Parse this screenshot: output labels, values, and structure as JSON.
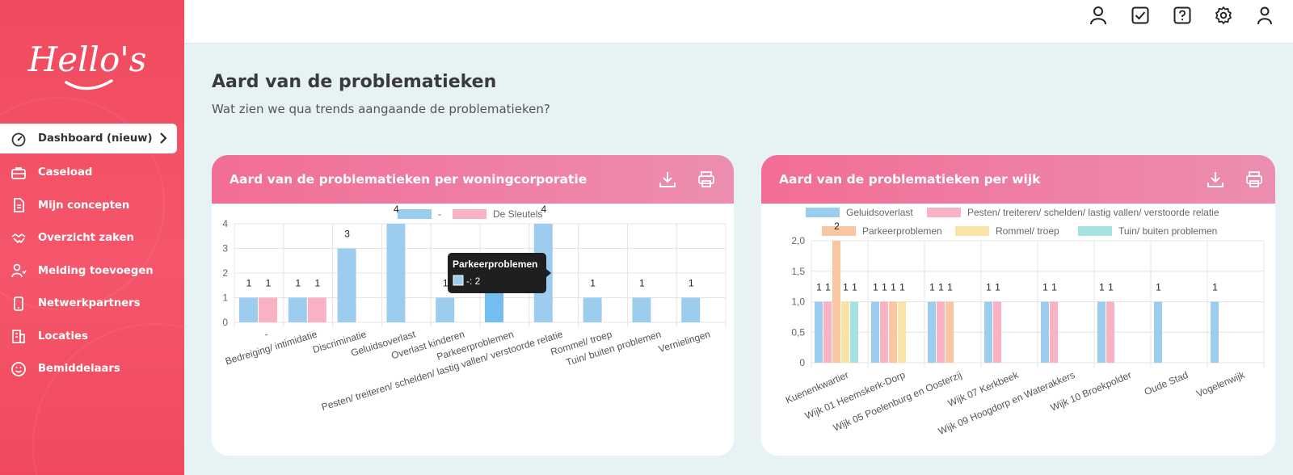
{
  "sidebar": {
    "logo_text": "Hello's",
    "items": [
      {
        "label": "Dashboard (nieuw)",
        "icon": "dashboard-gauge-icon"
      },
      {
        "label": "Caseload",
        "icon": "briefcase-icon"
      },
      {
        "label": "Mijn concepten",
        "icon": "document-icon"
      },
      {
        "label": "Overzicht zaken",
        "icon": "handshake-icon"
      },
      {
        "label": "Melding toevoegen",
        "icon": "user-add-icon"
      },
      {
        "label": "Netwerkpartners",
        "icon": "phone-icon"
      },
      {
        "label": "Locaties",
        "icon": "building-icon"
      },
      {
        "label": "Bemiddelaars",
        "icon": "smiley-icon"
      }
    ]
  },
  "topbar": {
    "icons": [
      "user-icon",
      "checkbox-icon",
      "help-icon",
      "gear-icon",
      "profile-icon"
    ]
  },
  "page": {
    "title": "Aard van de problematieken",
    "subtitle": "Wat zien we qua trends aangaande de problematieken?"
  },
  "card1": {
    "title": "Aard van de problematieken per woningcorporatie"
  },
  "card2": {
    "title": "Aard van de problematieken per wijk"
  },
  "colors": {
    "blue": "#9ccdee",
    "pink": "#f8b2c3",
    "orange": "#f8c7a2",
    "yellow": "#fbe3a8",
    "teal": "#a5e1df",
    "accent": "#f04a5e"
  },
  "chart_data": [
    {
      "type": "bar",
      "categories": [
        "-",
        "Bedreiging/ intimidatie",
        "Discriminatie",
        "Geluidsoverlast",
        "Overlast kinderen",
        "Parkeerproblemen",
        "Pesten/ treiteren/ schelden/ lastig vallen/ verstoorde relatie",
        "Rommel/ troep",
        "Tuin/ buiten problemen",
        "Vernielingen"
      ],
      "series": [
        {
          "name": "-",
          "color": "#9ccdee",
          "values": [
            1,
            1,
            3,
            4,
            1,
            2,
            4,
            1,
            1,
            1
          ]
        },
        {
          "name": "De Sleutels",
          "color": "#f8b2c3",
          "values": [
            1,
            1,
            0,
            0,
            0,
            0,
            0,
            0,
            0,
            0
          ]
        }
      ],
      "yticks": [
        "0",
        "1",
        "2",
        "3",
        "4"
      ],
      "ylim": [
        0,
        4
      ],
      "tooltip": {
        "title": "Parkeerproblemen",
        "text": "-: 2",
        "category_index": 5
      },
      "grid": true,
      "legend": "top"
    },
    {
      "type": "bar",
      "categories": [
        "Kuenenkwartier",
        "Wijk 01 Heemskerk-Dorp",
        "Wijk 05 Poelenburg en Oosterzij",
        "Wijk 07 Kerkbeek",
        "Wijk 09 Hoogdorp en Waterakkers",
        "Wijk 10 Broekpolder",
        "Oude Stad",
        "Vogelenwijk"
      ],
      "series": [
        {
          "name": "Geluidsoverlast",
          "color": "#9ccdee",
          "values": [
            1,
            1,
            1,
            1,
            1,
            1,
            1,
            1
          ]
        },
        {
          "name": "Pesten/ treiteren/ schelden/ lastig vallen/ verstoorde relatie",
          "color": "#f8b2c3",
          "values": [
            1,
            1,
            1,
            1,
            1,
            1,
            0,
            0
          ]
        },
        {
          "name": "Parkeerproblemen",
          "color": "#f8c7a2",
          "values": [
            2,
            1,
            1,
            0,
            0,
            0,
            0,
            0
          ]
        },
        {
          "name": "Rommel/ troep",
          "color": "#fbe3a8",
          "values": [
            1,
            1,
            0,
            0,
            0,
            0,
            0,
            0
          ]
        },
        {
          "name": "Tuin/ buiten problemen",
          "color": "#a5e1df",
          "values": [
            1,
            0,
            0,
            0,
            0,
            0,
            0,
            0
          ]
        }
      ],
      "yticks": [
        "0",
        "0,5",
        "1,0",
        "1,5",
        "2,0"
      ],
      "ylim": [
        0,
        2
      ],
      "grid": true,
      "legend": "top"
    }
  ]
}
